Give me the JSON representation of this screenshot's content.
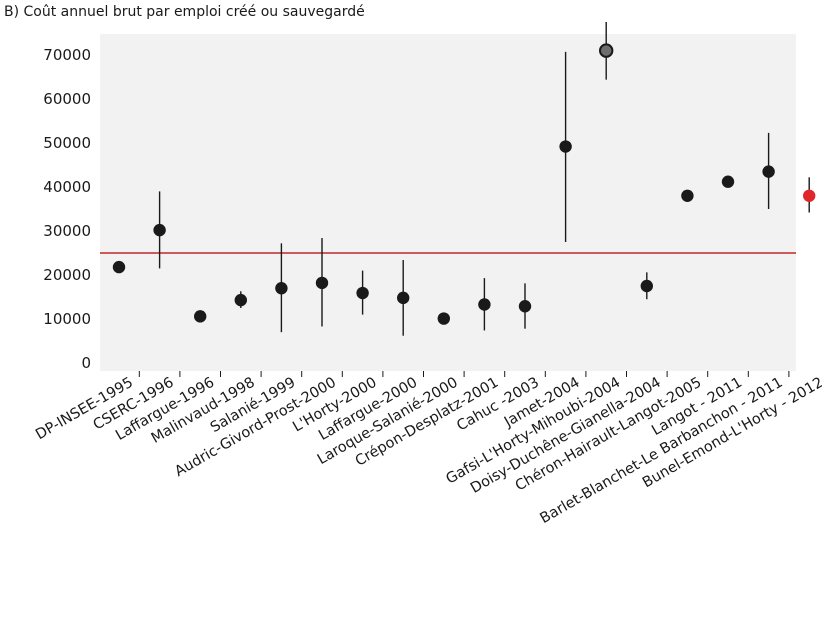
{
  "chart_data": {
    "type": "scatter",
    "title": "B) Coût annuel brut par emploi créé ou sauvegardé",
    "xlabel": "",
    "ylabel": "",
    "ylim": [
      0,
      77000
    ],
    "yticks": [
      0,
      10000,
      20000,
      30000,
      40000,
      50000,
      60000,
      70000
    ],
    "ytick_labels": [
      "0",
      "10000",
      "20000",
      "30000",
      "40000",
      "50000",
      "60000",
      "70000"
    ],
    "grid": false,
    "reference_line": {
      "value": 25000,
      "color": "#c0272d"
    },
    "colors": {
      "background": "#f2f2f2",
      "point": "#1a1a1a",
      "highlight": "#e0262b",
      "outlier": "#6e6e6e",
      "whisker": "#1a1a1a"
    },
    "categories": [
      "DP-INSEE-1995",
      "CSERC-1996",
      "Laffargue-1996",
      "Malinvaud-1998",
      "Salanié-1999",
      "Audric-Givord-Prost-2000",
      "L'Horty-2000",
      "Laffargue-2000",
      "Laroque-Salanié-2000",
      "Crépon-Desplatz-2001",
      "Cahuc -2003",
      "Jamet-2004",
      "Gafsi-L'Horty-Mihoubi-2004",
      "Doisy-Duchêne-Gianella-2004",
      "Chéron-Hairault-Langot-2005",
      "Langot - 2011",
      "Barlet-Blanchet-Le Barbanchon - 2011",
      "Bunel-Emond-L'Horty - 2012"
    ],
    "points": [
      {
        "y": 21800,
        "low": null,
        "high": null,
        "style": "normal"
      },
      {
        "y": 30200,
        "low": 21500,
        "high": 39000,
        "style": "normal"
      },
      {
        "y": 10600,
        "low": null,
        "high": null,
        "style": "normal"
      },
      {
        "y": 14300,
        "low": 12500,
        "high": 16300,
        "style": "normal"
      },
      {
        "y": 17000,
        "low": 7000,
        "high": 27200,
        "style": "normal"
      },
      {
        "y": 18200,
        "low": 8300,
        "high": 28400,
        "style": "normal"
      },
      {
        "y": 15900,
        "low": 11000,
        "high": 21000,
        "style": "normal"
      },
      {
        "y": 14800,
        "low": 6200,
        "high": 23400,
        "style": "normal"
      },
      {
        "y": 10100,
        "low": null,
        "high": null,
        "style": "normal"
      },
      {
        "y": 13300,
        "low": 7400,
        "high": 19300,
        "style": "normal"
      },
      {
        "y": 12900,
        "low": 7800,
        "high": 18100,
        "style": "normal"
      },
      {
        "y": 49200,
        "low": 27500,
        "high": 70700,
        "style": "normal"
      },
      {
        "y": 71000,
        "low": 64400,
        "high": 77500,
        "style": "outlier"
      },
      {
        "y": 17500,
        "low": 14500,
        "high": 20600,
        "style": "normal"
      },
      {
        "y": 38000,
        "low": null,
        "high": null,
        "style": "normal"
      },
      {
        "y": 41200,
        "low": null,
        "high": null,
        "style": "normal"
      },
      {
        "y": 43500,
        "low": 35000,
        "high": 52300,
        "style": "normal"
      },
      {
        "y": 38000,
        "low": 34200,
        "high": 42200,
        "style": "highlight"
      }
    ]
  }
}
